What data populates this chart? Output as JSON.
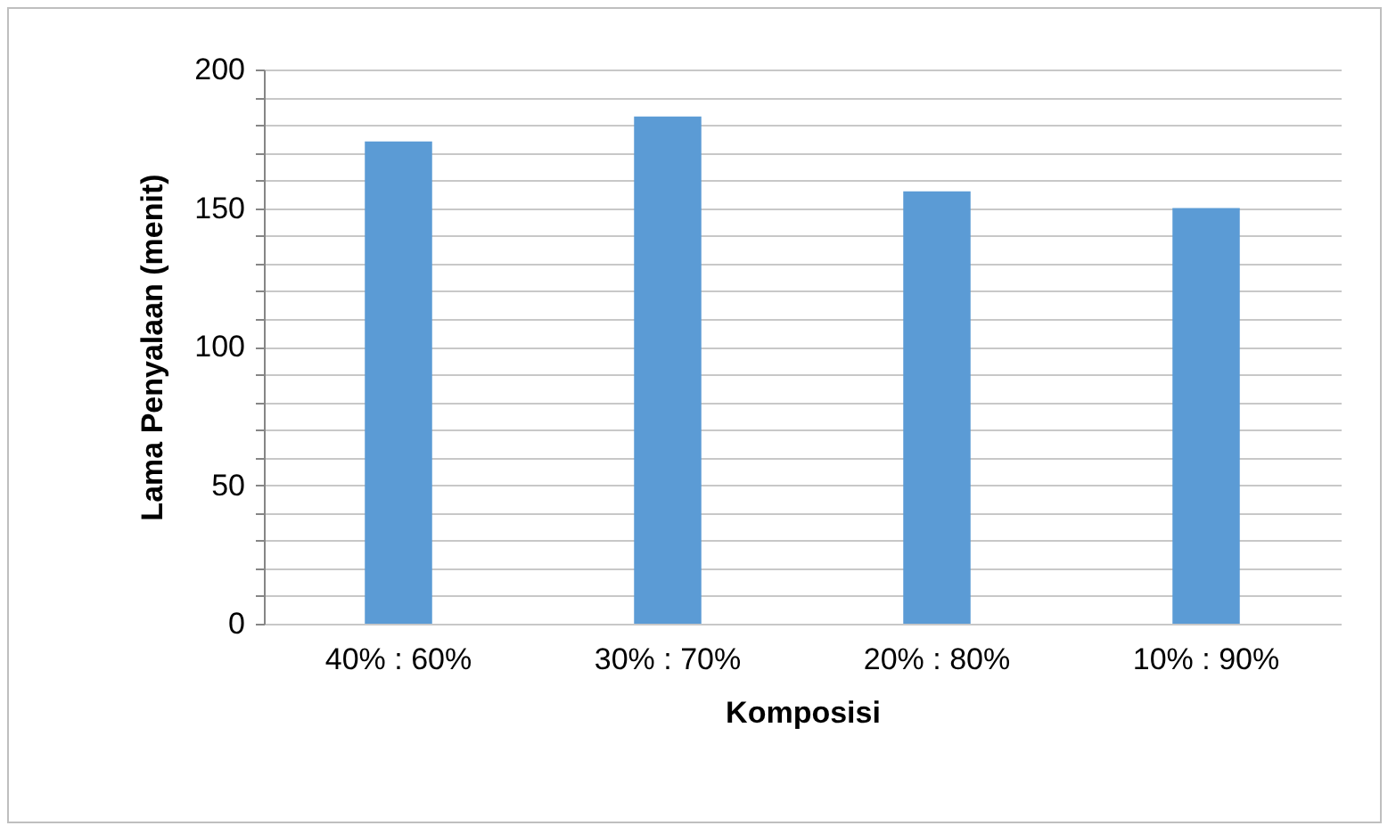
{
  "chart_data": {
    "type": "bar",
    "xlabel": "Komposisi",
    "ylabel": "Lama Penyalaan (menit)",
    "categories": [
      "40% : 60%",
      "30% : 70%",
      "20% : 80%",
      "10% : 90%"
    ],
    "values": [
      174,
      183,
      156,
      150
    ],
    "color": "#5b9bd5",
    "ylim": [
      0,
      200
    ],
    "yticks": [
      0,
      {
        "value": 10,
        "label": null
      },
      {
        "value": 20,
        "label": null
      },
      {
        "value": 30,
        "label": null
      },
      {
        "value": 40,
        "label": null
      },
      50,
      {
        "value": 60,
        "label": null
      },
      {
        "value": 70,
        "label": null
      },
      {
        "value": 80,
        "label": null
      },
      {
        "value": 90,
        "label": null
      },
      100,
      {
        "value": 110,
        "label": null
      },
      {
        "value": 120,
        "label": null
      },
      {
        "value": 130,
        "label": null
      },
      {
        "value": 140,
        "label": null
      },
      150,
      {
        "value": 160,
        "label": null
      },
      {
        "value": 170,
        "label": null
      },
      {
        "value": 180,
        "label": null
      },
      {
        "value": 190,
        "label": null
      },
      200
    ],
    "grid": "y"
  }
}
